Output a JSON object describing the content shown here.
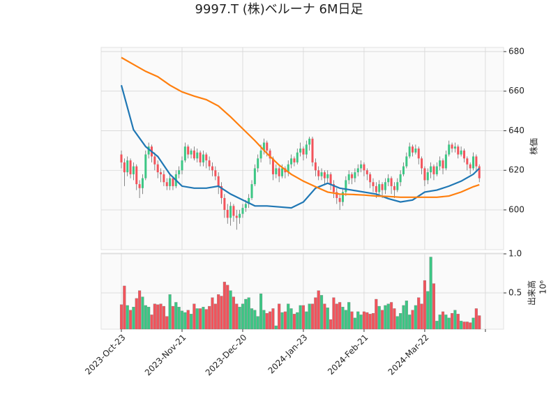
{
  "chart_data": {
    "type": "candlestick",
    "title": "9997.T (株)ベルーナ 6M日足",
    "ylabel": "株価",
    "volume_label": "出来高",
    "volume_offset": "10⁶",
    "up_color": "#3cc684",
    "down_color": "#f2535b",
    "grid": true,
    "xlim": [
      -6.67,
      126
    ],
    "xticks": [
      {
        "value": 0,
        "label": "2023-Oct-23"
      },
      {
        "value": 20,
        "label": "2023-Nov-21"
      },
      {
        "value": 40,
        "label": "2023-Dec-20"
      },
      {
        "value": 60,
        "label": "2024-Jan-23"
      },
      {
        "value": 80,
        "label": "2024-Feb-21"
      },
      {
        "value": 100,
        "label": "2024-Mar-22"
      },
      {
        "value": 120,
        "label": null
      }
    ],
    "ylim": [
      579.9,
      682.1
    ],
    "yticks": [
      600,
      620,
      640,
      660,
      680
    ],
    "vlim": [
      0.036,
      1.009
    ],
    "vticks": [
      {
        "value": 0.5,
        "label": "0.5"
      },
      {
        "value": 1.0,
        "label": "1.0"
      }
    ],
    "open": [
      628,
      624,
      619,
      625,
      618,
      622,
      613,
      611,
      616,
      628,
      632,
      627,
      623,
      619,
      618,
      614,
      612,
      616,
      612,
      618,
      620,
      625,
      632,
      628,
      630,
      626,
      629,
      624,
      628,
      625,
      622,
      620,
      617,
      612,
      606,
      600,
      596,
      602,
      597,
      596,
      598,
      601,
      603,
      606,
      613,
      621,
      626,
      630,
      634,
      630,
      626,
      618,
      621,
      617,
      621,
      619,
      623,
      626,
      624,
      629,
      631,
      628,
      633,
      636,
      624,
      620,
      617,
      619,
      616,
      618,
      613,
      609,
      606,
      604,
      609,
      615,
      618,
      616,
      619,
      621,
      623,
      620,
      618,
      614,
      612,
      609,
      613,
      610,
      614,
      616,
      612,
      610,
      614,
      618,
      622,
      627,
      632,
      629,
      631,
      626,
      621,
      615,
      619,
      622,
      618,
      622,
      625,
      621,
      628,
      633,
      631,
      632,
      628,
      630,
      626,
      623,
      621,
      627,
      622
    ],
    "high": [
      630,
      626,
      627,
      626,
      624,
      623,
      615,
      618,
      630,
      634,
      633,
      629,
      625,
      621,
      620,
      616,
      618,
      617,
      620,
      622,
      627,
      634,
      633,
      631,
      632,
      631,
      630,
      630,
      629,
      627,
      624,
      622,
      619,
      614,
      608,
      603,
      604,
      603,
      600,
      600,
      603,
      605,
      608,
      615,
      623,
      628,
      633,
      636,
      635,
      631,
      627,
      623,
      622,
      623,
      622,
      625,
      628,
      627,
      631,
      634,
      632,
      635,
      637,
      637,
      626,
      622,
      621,
      620,
      620,
      619,
      615,
      611,
      608,
      611,
      617,
      620,
      619,
      621,
      623,
      625,
      624,
      621,
      619,
      616,
      614,
      615,
      614,
      616,
      618,
      617,
      614,
      616,
      620,
      624,
      629,
      634,
      633,
      633,
      632,
      627,
      622,
      621,
      624,
      623,
      624,
      627,
      626,
      630,
      635,
      634,
      634,
      633,
      632,
      631,
      627,
      624,
      629,
      628,
      623
    ],
    "low": [
      621,
      612,
      617,
      616,
      615,
      610,
      606,
      608,
      615,
      626,
      624,
      620,
      616,
      614,
      612,
      610,
      610,
      610,
      611,
      616,
      618,
      624,
      626,
      626,
      625,
      624,
      622,
      622,
      621,
      620,
      617,
      615,
      608,
      603,
      596,
      593,
      592,
      594,
      590,
      593,
      596,
      599,
      601,
      605,
      612,
      619,
      624,
      628,
      627,
      623,
      615,
      616,
      614,
      616,
      616,
      617,
      621,
      622,
      623,
      627,
      625,
      626,
      630,
      622,
      617,
      615,
      615,
      613,
      614,
      610,
      606,
      603,
      600,
      602,
      607,
      613,
      613,
      614,
      617,
      619,
      617,
      615,
      611,
      609,
      606,
      607,
      606,
      608,
      612,
      608,
      606,
      609,
      612,
      617,
      621,
      626,
      627,
      628,
      623,
      618,
      612,
      613,
      616,
      615,
      617,
      620,
      618,
      620,
      627,
      629,
      629,
      626,
      627,
      624,
      620,
      618,
      620,
      619,
      614
    ],
    "close": [
      624,
      619,
      625,
      618,
      622,
      613,
      611,
      616,
      628,
      632,
      627,
      623,
      619,
      618,
      614,
      612,
      616,
      612,
      618,
      620,
      625,
      632,
      628,
      630,
      626,
      629,
      624,
      628,
      625,
      622,
      620,
      617,
      612,
      606,
      600,
      596,
      602,
      597,
      596,
      598,
      601,
      603,
      606,
      613,
      621,
      626,
      630,
      634,
      630,
      626,
      618,
      621,
      617,
      621,
      619,
      623,
      626,
      624,
      629,
      631,
      628,
      633,
      636,
      624,
      620,
      617,
      619,
      616,
      618,
      613,
      609,
      606,
      604,
      609,
      615,
      618,
      616,
      619,
      621,
      623,
      620,
      618,
      614,
      612,
      609,
      613,
      610,
      614,
      616,
      612,
      610,
      614,
      618,
      622,
      627,
      632,
      629,
      631,
      626,
      621,
      615,
      619,
      622,
      618,
      622,
      625,
      621,
      628,
      633,
      631,
      632,
      628,
      630,
      626,
      623,
      621,
      627,
      622,
      616
    ],
    "volume": [
      0.35,
      0.59,
      0.34,
      0.28,
      0.32,
      0.43,
      0.53,
      0.45,
      0.34,
      0.32,
      0.22,
      0.36,
      0.35,
      0.36,
      0.33,
      0.2,
      0.48,
      0.33,
      0.38,
      0.32,
      0.27,
      0.25,
      0.28,
      0.23,
      0.36,
      0.3,
      0.3,
      0.32,
      0.29,
      0.33,
      0.44,
      0.36,
      0.48,
      0.46,
      0.64,
      0.6,
      0.53,
      0.45,
      0.36,
      0.32,
      0.36,
      0.42,
      0.44,
      0.3,
      0.28,
      0.2,
      0.49,
      0.28,
      0.24,
      0.26,
      0.3,
      0.08,
      0.36,
      0.25,
      0.26,
      0.36,
      0.3,
      0.23,
      0.25,
      0.34,
      0.34,
      0.26,
      0.36,
      0.36,
      0.44,
      0.53,
      0.47,
      0.36,
      0.31,
      0.16,
      0.44,
      0.36,
      0.38,
      0.32,
      0.28,
      0.38,
      0.26,
      0.18,
      0.26,
      0.22,
      0.26,
      0.25,
      0.23,
      0.24,
      0.42,
      0.33,
      0.28,
      0.34,
      0.36,
      0.38,
      0.3,
      0.2,
      0.24,
      0.34,
      0.4,
      0.22,
      0.28,
      0.34,
      0.44,
      0.36,
      0.66,
      0.52,
      0.96,
      0.62,
      0.14,
      0.22,
      0.26,
      0.22,
      0.18,
      0.24,
      0.28,
      0.23,
      0.14,
      0.13,
      0.13,
      0.12,
      0.18,
      0.3,
      0.21
    ],
    "series": [
      {
        "color": "#1f77b4",
        "x": [
          0,
          4,
          8,
          12,
          16,
          20,
          24,
          28,
          32,
          36,
          40,
          44,
          48,
          52,
          56,
          60,
          64,
          68,
          72,
          76,
          80,
          84,
          88,
          92,
          96,
          100,
          104,
          108,
          112,
          116,
          118
        ],
        "values": [
          663,
          640.5,
          632,
          627,
          618,
          612,
          611,
          611,
          612,
          608,
          605,
          602,
          602,
          601.5,
          601,
          604,
          611,
          613.5,
          611,
          610,
          609,
          608,
          605.7,
          604,
          605,
          609,
          610,
          612,
          614.5,
          618,
          621
        ]
      },
      {
        "color": "#ff7f0e",
        "x": [
          0,
          4,
          8,
          12,
          16,
          20,
          24,
          28,
          32,
          36,
          40,
          44,
          48,
          52,
          56,
          60,
          64,
          68,
          72,
          76,
          80,
          84,
          88,
          92,
          96,
          100,
          104,
          108,
          112,
          116,
          118
        ],
        "values": [
          677,
          673.5,
          670,
          667.3,
          663,
          659.6,
          657.5,
          655.7,
          652.5,
          647,
          641,
          635,
          628.5,
          622.6,
          618,
          614.5,
          611.7,
          609,
          608,
          607.8,
          607.5,
          607,
          606.8,
          606.4,
          606.4,
          606.4,
          606.4,
          607,
          609,
          611.7,
          612.7
        ]
      }
    ]
  }
}
